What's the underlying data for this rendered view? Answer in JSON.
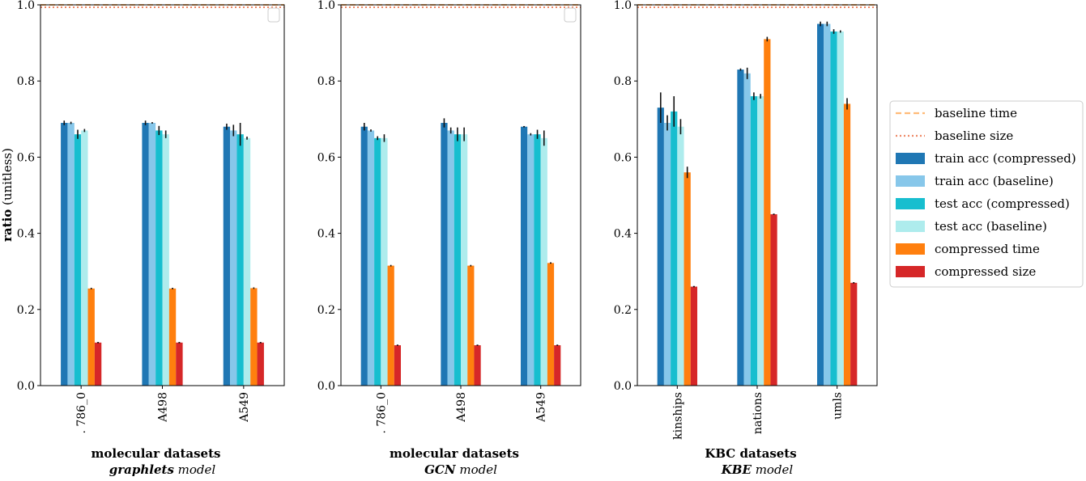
{
  "colors": {
    "train acc (compressed)": "#1f77b4",
    "train acc (baseline)": "#87c7ea",
    "test acc (compressed)": "#17becf",
    "test acc (baseline)": "#aeeced",
    "compressed time": "#ff7f0e",
    "compressed size": "#d62728",
    "baseline time": "#ffbb78",
    "baseline size": "#ee8866"
  },
  "ylabel": {
    "bold": "ratio",
    "rest": " (unitless)"
  },
  "legend": {
    "placement": "right-outside",
    "entries": [
      {
        "label": "baseline time",
        "style": "dashed",
        "color_key": "baseline time"
      },
      {
        "label": "baseline size",
        "style": "dotted",
        "color_key": "baseline size"
      },
      {
        "label": "train acc (compressed)",
        "style": "patch",
        "color_key": "train acc (compressed)"
      },
      {
        "label": "train acc (baseline)",
        "style": "patch",
        "color_key": "train acc (baseline)"
      },
      {
        "label": "test acc (compressed)",
        "style": "patch",
        "color_key": "test acc (compressed)"
      },
      {
        "label": "test acc (baseline)",
        "style": "patch",
        "color_key": "test acc (baseline)"
      },
      {
        "label": "compressed time",
        "style": "patch",
        "color_key": "compressed time"
      },
      {
        "label": "compressed size",
        "style": "patch",
        "color_key": "compressed size"
      }
    ]
  },
  "chart_data": [
    {
      "type": "bar",
      "xlabel": "molecular datasets",
      "subtitle_bold": "graphlets",
      "subtitle_rest": " model",
      "categories": [
        ". 786_0",
        "A498",
        "A549"
      ],
      "ylim": [
        0,
        1.0
      ],
      "yticks": [
        "0.0",
        "0.2",
        "0.4",
        "0.6",
        "0.8",
        "1.0"
      ],
      "baselines": [
        1.0,
        1.0
      ],
      "empty_legend_box": true,
      "series": [
        {
          "name": "train acc (compressed)",
          "values": [
            0.69,
            0.69,
            0.68
          ],
          "errors": [
            0.006,
            0.006,
            0.008
          ]
        },
        {
          "name": "train acc (baseline)",
          "values": [
            0.69,
            0.69,
            0.67
          ],
          "errors": [
            0.003,
            0.0,
            0.015
          ]
        },
        {
          "name": "test acc (compressed)",
          "values": [
            0.66,
            0.67,
            0.66
          ],
          "errors": [
            0.012,
            0.012,
            0.03
          ]
        },
        {
          "name": "test acc (baseline)",
          "values": [
            0.67,
            0.66,
            0.65
          ],
          "errors": [
            0.004,
            0.01,
            0.004
          ]
        },
        {
          "name": "compressed time",
          "values": [
            0.255,
            0.255,
            0.256
          ],
          "errors": [
            0.002,
            0.0,
            0.002
          ]
        },
        {
          "name": "compressed size",
          "values": [
            0.113,
            0.113,
            0.113
          ],
          "errors": [
            0.0,
            0.0,
            0.0
          ]
        }
      ]
    },
    {
      "type": "bar",
      "xlabel": "molecular datasets",
      "subtitle_bold": "GCN",
      "subtitle_rest": " model",
      "categories": [
        ". 786_0",
        "A498",
        "A549"
      ],
      "ylim": [
        0,
        1.0
      ],
      "yticks": [
        "0.0",
        "0.2",
        "0.4",
        "0.6",
        "0.8",
        "1.0"
      ],
      "baselines": [
        1.0,
        1.0
      ],
      "empty_legend_box": true,
      "series": [
        {
          "name": "train acc (compressed)",
          "values": [
            0.68,
            0.69,
            0.68
          ],
          "errors": [
            0.01,
            0.012,
            0.0
          ]
        },
        {
          "name": "train acc (baseline)",
          "values": [
            0.67,
            0.67,
            0.66
          ],
          "errors": [
            0.003,
            0.008,
            0.003
          ]
        },
        {
          "name": "test acc (compressed)",
          "values": [
            0.65,
            0.66,
            0.66
          ],
          "errors": [
            0.005,
            0.018,
            0.012
          ]
        },
        {
          "name": "test acc (baseline)",
          "values": [
            0.65,
            0.66,
            0.65
          ],
          "errors": [
            0.01,
            0.018,
            0.02
          ]
        },
        {
          "name": "compressed time",
          "values": [
            0.315,
            0.315,
            0.322
          ],
          "errors": [
            0.002,
            0.002,
            0.0
          ]
        },
        {
          "name": "compressed size",
          "values": [
            0.106,
            0.106,
            0.106
          ],
          "errors": [
            0.0,
            0.0,
            0.0
          ]
        }
      ]
    },
    {
      "type": "bar",
      "xlabel": "KBC datasets",
      "subtitle_bold": "KBE",
      "subtitle_rest": " model",
      "categories": [
        "kinships",
        "nations",
        "umls"
      ],
      "ylim": [
        0,
        1.0
      ],
      "yticks": [
        "0.0",
        "0.2",
        "0.4",
        "0.6",
        "0.8",
        "1.0"
      ],
      "baselines": [
        1.0,
        1.0
      ],
      "empty_legend_box": false,
      "series": [
        {
          "name": "train acc (compressed)",
          "values": [
            0.73,
            0.83,
            0.95
          ],
          "errors": [
            0.04,
            0.003,
            0.006
          ]
        },
        {
          "name": "train acc (baseline)",
          "values": [
            0.69,
            0.82,
            0.95
          ],
          "errors": [
            0.02,
            0.015,
            0.006
          ]
        },
        {
          "name": "test acc (compressed)",
          "values": [
            0.72,
            0.76,
            0.93
          ],
          "errors": [
            0.04,
            0.01,
            0.006
          ]
        },
        {
          "name": "test acc (baseline)",
          "values": [
            0.68,
            0.76,
            0.93
          ],
          "errors": [
            0.02,
            0.006,
            0.003
          ]
        },
        {
          "name": "compressed time",
          "values": [
            0.56,
            0.91,
            0.74
          ],
          "errors": [
            0.015,
            0.006,
            0.015
          ]
        },
        {
          "name": "compressed size",
          "values": [
            0.26,
            0.45,
            0.27
          ],
          "errors": [
            0.0,
            0.0,
            0.0
          ]
        }
      ]
    }
  ]
}
